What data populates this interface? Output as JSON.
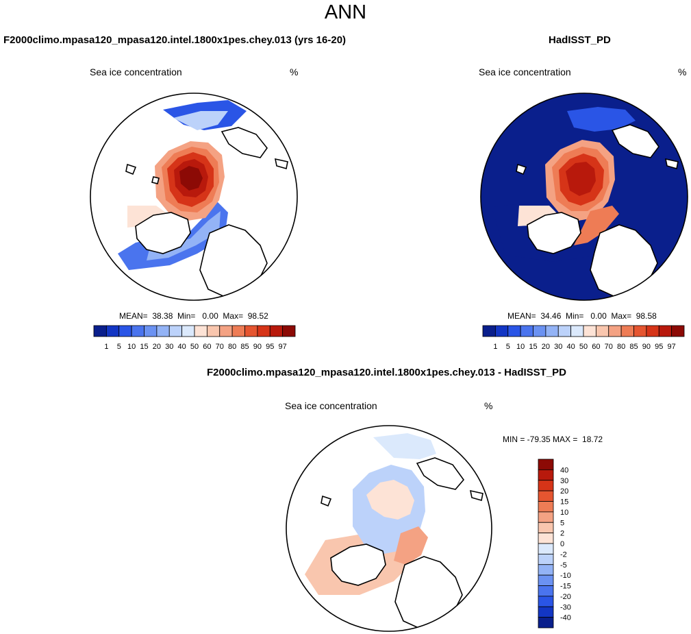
{
  "page": {
    "title": "ANN"
  },
  "panels": [
    {
      "title": "F2000climo.mpasa120_mpasa120.intel.1800x1pes.chey.013 (yrs 16-20)",
      "var_label": "Sea ice concentration",
      "units": "%",
      "stats": "MEAN=  38.38  Min=   0.00  Max=  98.52"
    },
    {
      "title": "HadISST_PD",
      "var_label": "Sea ice concentration",
      "units": "%",
      "stats": "MEAN=  34.46  Min=   0.00  Max=  98.58"
    },
    {
      "title": "F2000climo.mpasa120_mpasa120.intel.1800x1pes.chey.013 - HadISST_PD",
      "var_label": "Sea ice concentration",
      "units": "%",
      "stats": "MIN = -79.35 MAX =  18.72"
    }
  ],
  "chart_data": [
    {
      "type": "heatmap",
      "projection": "north polar stereographic",
      "title": "F2000climo.mpasa120_mpasa120.intel.1800x1pes.chey.013 (yrs 16-20)",
      "variable": "Sea ice concentration",
      "units": "%",
      "mean": 38.38,
      "min": 0.0,
      "max": 98.52,
      "colorbar": {
        "orientation": "horizontal",
        "levels": [
          "1",
          "5",
          "10",
          "15",
          "20",
          "30",
          "40",
          "50",
          "60",
          "70",
          "80",
          "85",
          "90",
          "95",
          "97"
        ],
        "colors": [
          "#0a1f8c",
          "#1336c4",
          "#2a55e6",
          "#4a74ee",
          "#6b92f2",
          "#93b3f6",
          "#bcd2fa",
          "#dbe9fc",
          "#fde3d6",
          "#f9c6ae",
          "#f4a283",
          "#ee7c55",
          "#e55530",
          "#d63418",
          "#b8190c",
          "#8c0a05"
        ]
      }
    },
    {
      "type": "heatmap",
      "projection": "north polar stereographic",
      "title": "HadISST_PD",
      "variable": "Sea ice concentration",
      "units": "%",
      "mean": 34.46,
      "min": 0.0,
      "max": 98.58,
      "colorbar": {
        "orientation": "horizontal",
        "levels": [
          "1",
          "5",
          "10",
          "15",
          "20",
          "30",
          "40",
          "50",
          "60",
          "70",
          "80",
          "85",
          "90",
          "95",
          "97"
        ],
        "colors": [
          "#0a1f8c",
          "#1336c4",
          "#2a55e6",
          "#4a74ee",
          "#6b92f2",
          "#93b3f6",
          "#bcd2fa",
          "#dbe9fc",
          "#fde3d6",
          "#f9c6ae",
          "#f4a283",
          "#ee7c55",
          "#e55530",
          "#d63418",
          "#b8190c",
          "#8c0a05"
        ]
      }
    },
    {
      "type": "heatmap",
      "projection": "north polar stereographic",
      "title": "F2000climo.mpasa120_mpasa120.intel.1800x1pes.chey.013 - HadISST_PD",
      "variable": "Sea ice concentration",
      "units": "%",
      "min": -79.35,
      "max": 18.72,
      "colorbar": {
        "orientation": "vertical",
        "levels": [
          "40",
          "30",
          "20",
          "15",
          "10",
          "5",
          "2",
          "0",
          "-2",
          "-5",
          "-10",
          "-15",
          "-20",
          "-30",
          "-40"
        ],
        "colors": [
          "#8c0a05",
          "#b8190c",
          "#d63418",
          "#e55530",
          "#ee7c55",
          "#f4a283",
          "#f9c6ae",
          "#fde3d6",
          "#dbe9fc",
          "#bcd2fa",
          "#93b3f6",
          "#6b92f2",
          "#4a74ee",
          "#2a55e6",
          "#1336c4",
          "#0a1f8c"
        ]
      }
    }
  ]
}
